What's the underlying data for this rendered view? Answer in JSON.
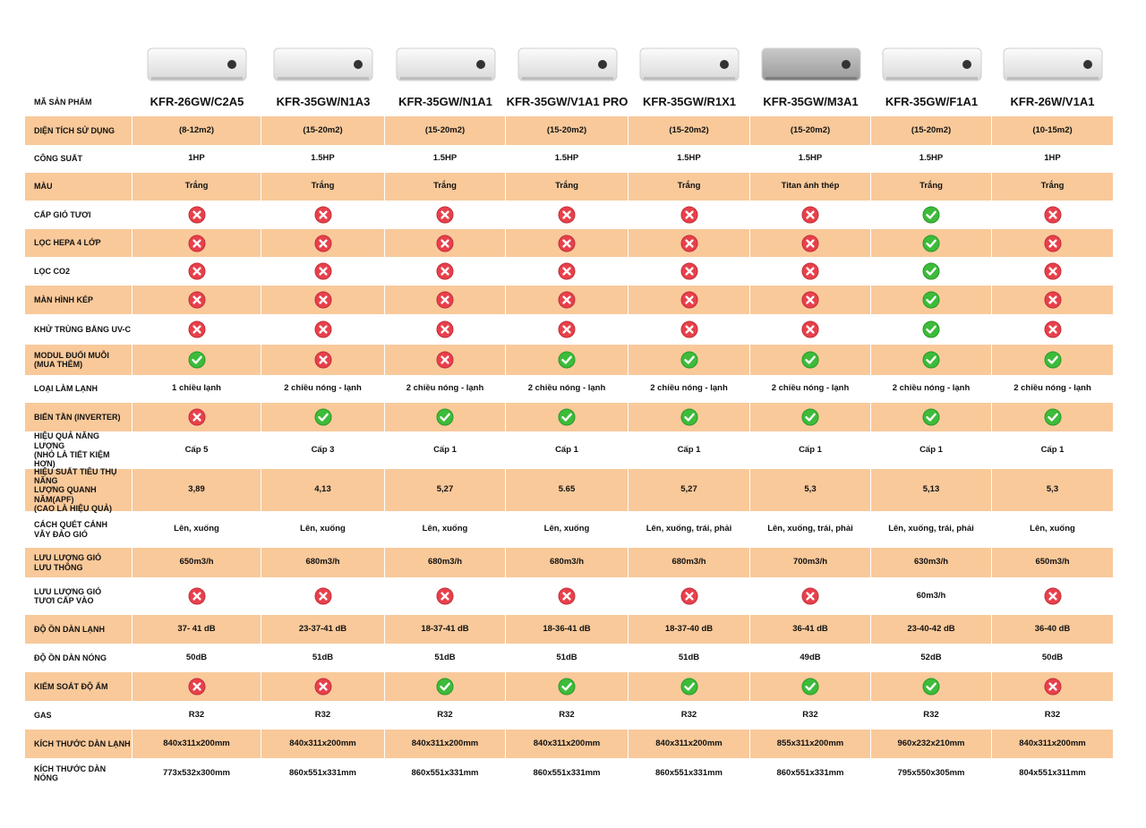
{
  "table": {
    "header": {
      "label": "MÃ SẢN PHẨM",
      "products": [
        "KFR-26GW/C2A5",
        "KFR-35GW/N1A3",
        "KFR-35GW/N1A1",
        "KFR-35GW/V1A1 PRO",
        "KFR-35GW/R1X1",
        "KFR-35GW/M3A1",
        "KFR-35GW/F1A1",
        "KFR-26W/V1A1"
      ]
    },
    "rows": [
      {
        "label": "DIỆN TÍCH SỬ DỤNG",
        "cells": [
          "(8-12m2)",
          "(15-20m2)",
          "(15-20m2)",
          "(15-20m2)",
          "(15-20m2)",
          "(15-20m2)",
          "(15-20m2)",
          "(10-15m2)"
        ]
      },
      {
        "label": "CÔNG SUẤT",
        "cells": [
          "1HP",
          "1.5HP",
          "1.5HP",
          "1.5HP",
          "1.5HP",
          "1.5HP",
          "1.5HP",
          "1HP"
        ]
      },
      {
        "label": "MÀU",
        "cells": [
          "Trắng",
          "Trắng",
          "Trắng",
          "Trắng",
          "Trắng",
          "Titan ánh thép",
          "Trắng",
          "Trắng"
        ]
      },
      {
        "label": "CẤP GIÓ TƯƠI",
        "cells": [
          false,
          false,
          false,
          false,
          false,
          false,
          true,
          false
        ]
      },
      {
        "label": "LỌC HEPA 4 LỚP",
        "cells": [
          false,
          false,
          false,
          false,
          false,
          false,
          true,
          false
        ]
      },
      {
        "label": "LỌC CO2",
        "cells": [
          false,
          false,
          false,
          false,
          false,
          false,
          true,
          false
        ]
      },
      {
        "label": "MÀN HÌNH KÉP",
        "cells": [
          false,
          false,
          false,
          false,
          false,
          false,
          true,
          false
        ]
      },
      {
        "label": "KHỬ TRÙNG BẰNG UV-C",
        "cells": [
          false,
          false,
          false,
          false,
          false,
          false,
          true,
          false
        ]
      },
      {
        "label": "MODUL ĐUỔI MUỖI\n(MUA THÊM)",
        "cells": [
          true,
          false,
          false,
          true,
          true,
          true,
          true,
          true
        ]
      },
      {
        "label": "LOẠI LÀM LẠNH",
        "cells": [
          "1 chiều lạnh",
          "2 chiều nóng - lạnh",
          "2 chiều nóng - lạnh",
          "2 chiều nóng - lạnh",
          "2 chiều nóng - lạnh",
          "2 chiều nóng - lạnh",
          "2 chiều nóng - lạnh",
          "2 chiều nóng - lạnh"
        ]
      },
      {
        "label": "BIẾN TẦN (INVERTER)",
        "cells": [
          false,
          true,
          true,
          true,
          true,
          true,
          true,
          true
        ]
      },
      {
        "label": "HIỆU QUẢ NĂNG LƯỢNG\n(NHỎ LÀ TIẾT KIỆM HƠN)",
        "cells": [
          "Cấp 5",
          "Cấp 3",
          "Cấp 1",
          "Cấp 1",
          "Cấp 1",
          "Cấp 1",
          "Cấp 1",
          "Cấp 1"
        ]
      },
      {
        "label": "HIỆU SUẤT TIÊU THỤ NĂNG\nLƯỢNG QUANH NĂM(APF)\n(CAO LÀ HIỆU QUẢ)",
        "cells": [
          "3,89",
          "4,13",
          "5,27",
          "5.65",
          "5,27",
          "5,3",
          "5,13",
          "5,3"
        ]
      },
      {
        "label": "CÁCH QUÉT CÁNH\nVẪY ĐẢO GIÓ",
        "cells": [
          "Lên, xuống",
          "Lên, xuống",
          "Lên, xuống",
          "Lên, xuống",
          "Lên, xuống, trái, phải",
          "Lên, xuống, trái, phải",
          "Lên, xuống, trái, phải",
          "Lên, xuống"
        ]
      },
      {
        "label": "LƯU LƯỢNG GIÓ\nLƯU THÔNG",
        "cells": [
          "650m3/h",
          "680m3/h",
          "680m3/h",
          "680m3/h",
          "680m3/h",
          "700m3/h",
          "630m3/h",
          "650m3/h"
        ]
      },
      {
        "label": "LƯU LƯỢNG GIÓ\nTƯƠI CẤP VÀO",
        "cells": [
          false,
          false,
          false,
          false,
          false,
          false,
          "60m3/h",
          false
        ]
      },
      {
        "label": "ĐỘ ỒN DÀN LẠNH",
        "cells": [
          "37- 41 dB",
          "23-37-41 dB",
          "18-37-41 dB",
          "18-36-41 dB",
          "18-37-40 dB",
          "36-41 dB",
          "23-40-42 dB",
          "36-40 dB"
        ]
      },
      {
        "label": "ĐỘ ỒN DÀN NÓNG",
        "cells": [
          "50dB",
          "51dB",
          "51dB",
          "51dB",
          "51dB",
          "49dB",
          "52dB",
          "50dB"
        ]
      },
      {
        "label": "KIỂM SOÁT ĐỘ ẨM",
        "cells": [
          false,
          false,
          true,
          true,
          true,
          true,
          true,
          false
        ]
      },
      {
        "label": "GAS",
        "cells": [
          "R32",
          "R32",
          "R32",
          "R32",
          "R32",
          "R32",
          "R32",
          "R32"
        ]
      },
      {
        "label": "KÍCH THƯỚC DÀN LẠNH",
        "cells": [
          "840x311x200mm",
          "840x311x200mm",
          "840x311x200mm",
          "840x311x200mm",
          "840x311x200mm",
          "855x311x200mm",
          "960x232x210mm",
          "840x311x200mm"
        ]
      },
      {
        "label": "KÍCH THƯỚC DÀN NÓNG",
        "cells": [
          "773x532x300mm",
          "860x551x331mm",
          "860x551x331mm",
          "860x551x331mm",
          "860x551x331mm",
          "860x551x331mm",
          "795x550x305mm",
          "804x551x311mm"
        ]
      }
    ]
  }
}
